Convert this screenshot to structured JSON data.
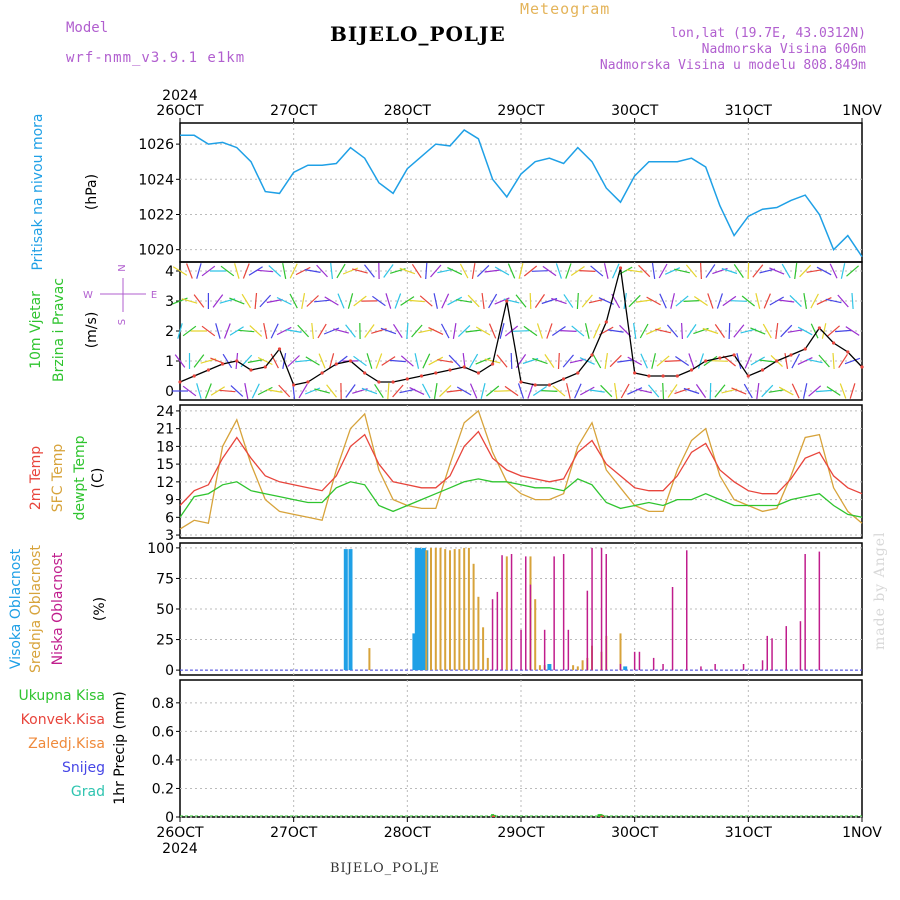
{
  "header": {
    "model_label": "Model",
    "model_name": "wrf-nmm_v3.9.1  e1km",
    "chart_kind": "Meteogram",
    "station": "BIJELO_POLJE",
    "coords": "lon,lat (19.7E, 43.0312N)",
    "elevation": "Nadmorska Visina 606m",
    "model_elevation": "Nadmorska Visina u modelu 808.849m"
  },
  "footer": {
    "station": "BIJELO_POLJE",
    "credit": "made by Angel"
  },
  "colors": {
    "pressure": "#1fa0e6",
    "wind_green": "#2fc42f",
    "wind_axis": "#b15fcf",
    "t2m": "#e8453c",
    "sfc": "#d7a33b",
    "dew": "#2fc42f",
    "cloud_high": "#1fa0e6",
    "cloud_mid": "#d7a33b",
    "cloud_low": "#c01d8c",
    "precip_total": "#2fc42f",
    "precip_conv": "#e8453c",
    "precip_frz": "#ef8a3b",
    "precip_snow": "#4646e6",
    "precip_grad": "#2fc4b0",
    "ylabel_units": "#000000"
  },
  "chart_data": [
    {
      "type": "line",
      "id": "pressure",
      "ylabel": "Pritisak na nivou mora",
      "units": "(hPa)",
      "yticks": [
        1020,
        1022,
        1024,
        1026
      ],
      "ylim": [
        1019.3,
        1027.2
      ],
      "x_start": "2024-10-26 00",
      "x_end": "2024-11-01 00",
      "xticks_top": [
        "26OCT",
        "27OCT",
        "28OCT",
        "29OCT",
        "30OCT",
        "31OCT",
        "1NOV"
      ],
      "year_label": "2024",
      "series": [
        {
          "x_hours": [
            0,
            3,
            6,
            9,
            12,
            15,
            18,
            21,
            24,
            27,
            30,
            33,
            36,
            39,
            42,
            45,
            48,
            51,
            54,
            57,
            60,
            63,
            66,
            69,
            72,
            75,
            78,
            81,
            84,
            87,
            90,
            93,
            96,
            99,
            102,
            105,
            108,
            111,
            114,
            117,
            120,
            123,
            126,
            129,
            132,
            135,
            138,
            141,
            144
          ],
          "values": [
            1026.5,
            1026.5,
            1026.0,
            1026.1,
            1025.8,
            1025.0,
            1023.3,
            1023.2,
            1024.4,
            1024.8,
            1024.8,
            1024.9,
            1025.8,
            1025.2,
            1023.8,
            1023.2,
            1024.6,
            1025.3,
            1026.0,
            1025.9,
            1026.8,
            1026.3,
            1024.0,
            1023.0,
            1024.3,
            1025.0,
            1025.2,
            1024.9,
            1025.8,
            1025.0,
            1023.5,
            1022.7,
            1024.2,
            1025.0,
            1025.0,
            1025.0,
            1025.2,
            1024.7,
            1022.5,
            1020.8,
            1021.9,
            1022.3,
            1022.4,
            1022.8,
            1023.1,
            1022.0,
            1020.0,
            1020.8,
            1019.6
          ]
        }
      ]
    },
    {
      "type": "line",
      "id": "wind",
      "ylabel": "10m Vjetar",
      "ylabel2": "Brzina i Pravac",
      "units": "(m/s)",
      "compass": {
        "n": "N",
        "s": "S",
        "e": "E",
        "w": "W"
      },
      "yticks": [
        0,
        1,
        2,
        3,
        4
      ],
      "ylim": [
        -0.3,
        4.3
      ],
      "series": [
        {
          "name": "speed",
          "x_hours": [
            0,
            3,
            6,
            9,
            12,
            15,
            18,
            21,
            24,
            27,
            30,
            33,
            36,
            39,
            42,
            45,
            48,
            51,
            54,
            57,
            60,
            63,
            66,
            69,
            72,
            75,
            78,
            81,
            84,
            87,
            90,
            93,
            96,
            99,
            102,
            105,
            108,
            111,
            114,
            117,
            120,
            123,
            126,
            129,
            132,
            135,
            138,
            141,
            144
          ],
          "values": [
            0.3,
            0.5,
            0.7,
            0.9,
            1.0,
            0.7,
            0.8,
            1.4,
            0.2,
            0.3,
            0.6,
            0.9,
            1.0,
            0.6,
            0.3,
            0.3,
            0.4,
            0.5,
            0.6,
            0.7,
            0.8,
            0.6,
            0.9,
            3.0,
            0.3,
            0.2,
            0.2,
            0.4,
            0.6,
            1.2,
            2.3,
            4.1,
            0.6,
            0.5,
            0.5,
            0.5,
            0.7,
            1.0,
            1.1,
            1.2,
            0.5,
            0.7,
            1.0,
            1.2,
            1.4,
            2.1,
            1.6,
            1.3,
            0.8
          ]
        }
      ]
    },
    {
      "type": "line",
      "id": "temperature",
      "ylabel": "2m Temp",
      "ylabel2": "SFC Temp",
      "ylabel3": "dewpt Temp",
      "units": "(C)",
      "yticks": [
        3,
        6,
        9,
        12,
        15,
        18,
        21,
        24
      ],
      "ylim": [
        2.5,
        25
      ],
      "series": [
        {
          "name": "2m",
          "x_hours": [
            0,
            3,
            6,
            9,
            12,
            15,
            18,
            21,
            24,
            27,
            30,
            33,
            36,
            39,
            42,
            45,
            48,
            51,
            54,
            57,
            60,
            63,
            66,
            69,
            72,
            75,
            78,
            81,
            84,
            87,
            90,
            93,
            96,
            99,
            102,
            105,
            108,
            111,
            114,
            117,
            120,
            123,
            126,
            129,
            132,
            135,
            138,
            141,
            144
          ],
          "values": [
            8,
            10.5,
            11.5,
            16,
            19.5,
            16,
            13,
            12,
            11.5,
            11,
            10.5,
            13,
            18,
            20,
            15,
            12,
            11.5,
            11,
            11,
            13,
            18,
            20.5,
            16,
            14,
            13,
            12.5,
            12,
            12.5,
            17,
            19,
            15,
            13,
            11,
            10.5,
            10.5,
            13,
            17,
            18.5,
            14,
            12,
            10.5,
            10,
            10,
            12.5,
            16,
            17,
            13,
            11,
            10
          ]
        },
        {
          "name": "sfc",
          "x_hours": [
            0,
            3,
            6,
            9,
            12,
            15,
            18,
            21,
            24,
            27,
            30,
            33,
            36,
            39,
            42,
            45,
            48,
            51,
            54,
            57,
            60,
            63,
            66,
            69,
            72,
            75,
            78,
            81,
            84,
            87,
            90,
            93,
            96,
            99,
            102,
            105,
            108,
            111,
            114,
            117,
            120,
            123,
            126,
            129,
            132,
            135,
            138,
            141,
            144
          ],
          "values": [
            4,
            5.5,
            5,
            18,
            22.5,
            15,
            9,
            7,
            6.5,
            6,
            5.5,
            14,
            21,
            23.5,
            14,
            9,
            8,
            7.5,
            7.5,
            15,
            22,
            24,
            17,
            12,
            10,
            9,
            9,
            10,
            18,
            22,
            14,
            11,
            8,
            7,
            7,
            14,
            19,
            21,
            13,
            9,
            8,
            7,
            7.5,
            13,
            19.5,
            20,
            11,
            7,
            5
          ]
        },
        {
          "name": "dew",
          "x_hours": [
            0,
            3,
            6,
            9,
            12,
            15,
            18,
            21,
            24,
            27,
            30,
            33,
            36,
            39,
            42,
            45,
            48,
            51,
            54,
            57,
            60,
            63,
            66,
            69,
            72,
            75,
            78,
            81,
            84,
            87,
            90,
            93,
            96,
            99,
            102,
            105,
            108,
            111,
            114,
            117,
            120,
            123,
            126,
            129,
            132,
            135,
            138,
            141,
            144
          ],
          "values": [
            6,
            9.5,
            10,
            11.5,
            12,
            10.5,
            10,
            9.5,
            9,
            8.5,
            8.5,
            11,
            12,
            11.5,
            8,
            7,
            8,
            9,
            10,
            11,
            12,
            12.5,
            12,
            12,
            11.5,
            11,
            11,
            10.5,
            12.5,
            11.5,
            8.5,
            7.5,
            8,
            8.5,
            8,
            9,
            9,
            10,
            9,
            8,
            8,
            8,
            8,
            9,
            9.5,
            10,
            8,
            6.5,
            6
          ]
        }
      ]
    },
    {
      "type": "bar",
      "id": "clouds",
      "ylabel": "Visoka Oblacnost",
      "ylabel2": "Srednja Oblacnost",
      "ylabel3": "Niska Oblacnost",
      "units": "(%)",
      "yticks": [
        0,
        25,
        50,
        75,
        100
      ],
      "ylim": [
        -4,
        104
      ],
      "series": [
        {
          "name": "high",
          "x_hours": [
            35,
            36,
            49.5,
            50,
            50.5,
            51,
            51.5,
            52,
            78,
            94
          ],
          "values": [
            99,
            99,
            30,
            100,
            100,
            99,
            100,
            98,
            5,
            3
          ]
        },
        {
          "name": "mid",
          "x_hours": [
            40,
            52,
            53,
            54,
            55,
            56,
            57,
            58,
            59,
            60,
            61,
            62,
            63,
            64,
            65,
            69,
            74,
            75,
            76,
            77,
            83,
            84,
            85,
            86,
            87,
            89,
            90,
            93
          ],
          "values": [
            18,
            98,
            100,
            100,
            100,
            99,
            98,
            99,
            99,
            100,
            100,
            87,
            60,
            35,
            10,
            93,
            93,
            58,
            4,
            4,
            4,
            3,
            8,
            10,
            20,
            15,
            28,
            30
          ]
        },
        {
          "name": "low",
          "x_hours": [
            66,
            67,
            68,
            70,
            72,
            73,
            74,
            77,
            79,
            81,
            82,
            86,
            87,
            89,
            90,
            93,
            96,
            97,
            100,
            102,
            104,
            107,
            110,
            113,
            119,
            123,
            124,
            125,
            128,
            131,
            132,
            135
          ],
          "values": [
            58,
            64,
            94,
            95,
            33,
            93,
            70,
            33,
            93,
            95,
            33,
            65,
            100,
            100,
            95,
            5,
            15,
            15,
            10,
            5,
            68,
            98,
            3,
            5,
            5,
            8,
            28,
            26,
            36,
            40,
            95,
            97
          ]
        }
      ]
    },
    {
      "type": "bar",
      "id": "precip",
      "ylabel": "1hr Precip",
      "units": "(mm)",
      "legend": [
        "Ukupna  Kisa",
        "Konvek.Kisa",
        "Zaledj.Kisa",
        "Snijeg",
        "Grad"
      ],
      "yticks": [
        0,
        0.2,
        0.4,
        0.6,
        0.8
      ],
      "ylim": [
        0,
        0.96
      ],
      "xticks_bottom": [
        "26OCT",
        "27OCT",
        "28OCT",
        "29OCT",
        "30OCT",
        "31OCT",
        "1NOV"
      ],
      "year_label": "2024",
      "series": [
        {
          "name": "total",
          "x_hours": [
            66,
            66.4,
            88.5,
            88.9,
            89.3
          ],
          "values": [
            0.02,
            0.015,
            0.02,
            0.02,
            0.015
          ]
        },
        {
          "name": "convective",
          "x_hours": [
            66.2,
            89.1
          ],
          "values": [
            0.01,
            0.01
          ]
        }
      ]
    }
  ]
}
